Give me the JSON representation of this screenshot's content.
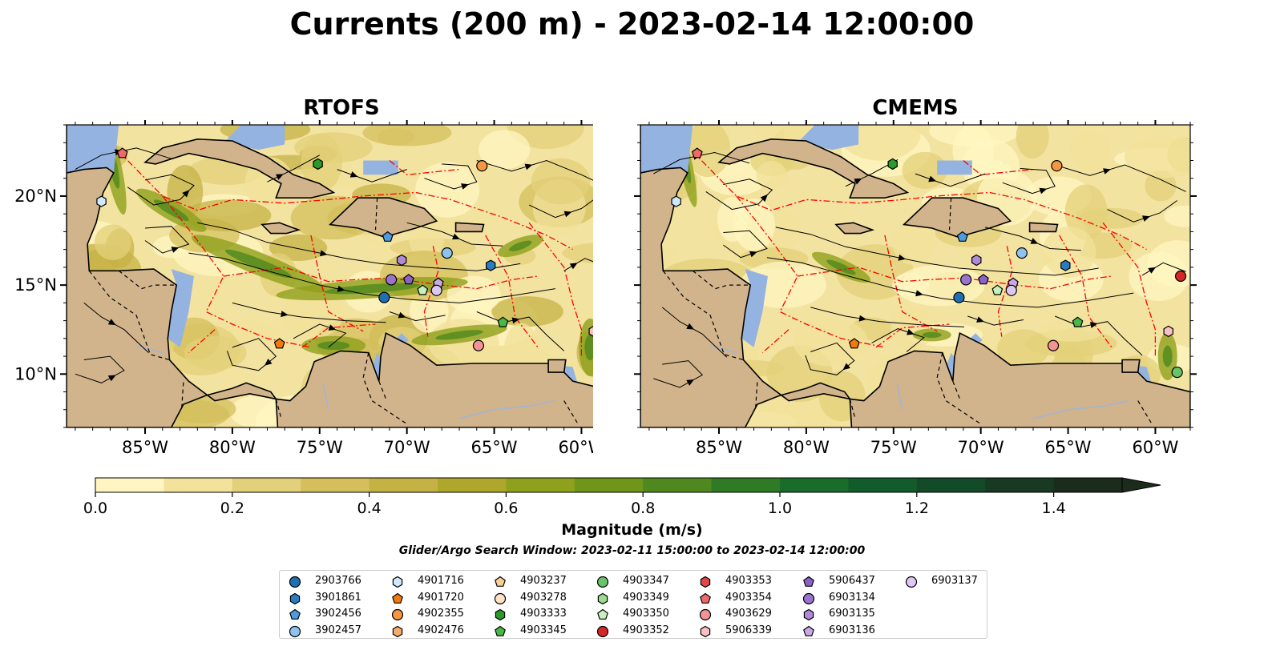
{
  "title": "Currents (200 m) - 2023-02-14 12:00:00",
  "panels": [
    {
      "id": "rtofs",
      "title": "RTOFS"
    },
    {
      "id": "cmems",
      "title": "CMEMS"
    }
  ],
  "map": {
    "lon_range": [
      -89.5,
      -58
    ],
    "lat_range": [
      7,
      24
    ],
    "lon_ticks": [
      {
        "v": -85,
        "label": "85°W"
      },
      {
        "v": -80,
        "label": "80°W"
      },
      {
        "v": -75,
        "label": "75°W"
      },
      {
        "v": -70,
        "label": "70°W"
      },
      {
        "v": -65,
        "label": "65°W"
      },
      {
        "v": -60,
        "label": "60°W"
      }
    ],
    "lat_ticks": [
      {
        "v": 10,
        "label": "10°N"
      },
      {
        "v": 15,
        "label": "15°N"
      },
      {
        "v": 20,
        "label": "20°N"
      }
    ],
    "colors": {
      "land": "#d2b48c",
      "shallow": "#95b3e0",
      "eez": "#ff0000"
    }
  },
  "colorbar": {
    "label": "Magnitude (m/s)",
    "min": 0,
    "max": 1.5,
    "step": 0.1,
    "ticks": [
      {
        "v": 0.0,
        "label": "0.0"
      },
      {
        "v": 0.2,
        "label": "0.2"
      },
      {
        "v": 0.4,
        "label": "0.4"
      },
      {
        "v": 0.6,
        "label": "0.6"
      },
      {
        "v": 0.8,
        "label": "0.8"
      },
      {
        "v": 1.0,
        "label": "1.0"
      },
      {
        "v": 1.2,
        "label": "1.2"
      },
      {
        "v": 1.4,
        "label": "1.4"
      }
    ],
    "colors": [
      "#fff5c2",
      "#f2e29b",
      "#e3d07a",
      "#d4bf5c",
      "#c5b245",
      "#aea72c",
      "#8fa01c",
      "#6f951a",
      "#4f881e",
      "#2f7a24",
      "#1a6c2a",
      "#125c2b",
      "#134a28",
      "#183a22",
      "#1b2c1c"
    ]
  },
  "search_window": "Glider/Argo Search Window: 2023-02-11 15:00:00 to 2023-02-14 12:00:00",
  "legend": [
    {
      "id": "2903766",
      "marker": "circle",
      "color": "#1f6fb4"
    },
    {
      "id": "3901861",
      "marker": "hexagon",
      "color": "#2a7cc0"
    },
    {
      "id": "3902456",
      "marker": "pentagon",
      "color": "#4d9be0"
    },
    {
      "id": "3902457",
      "marker": "circle",
      "color": "#8ec3f0"
    },
    {
      "id": "4901716",
      "marker": "hexagon",
      "color": "#cfe8fb"
    },
    {
      "id": "4901720",
      "marker": "pentagon",
      "color": "#f07a10"
    },
    {
      "id": "4902355",
      "marker": "circle",
      "color": "#f59642"
    },
    {
      "id": "4902476",
      "marker": "hexagon",
      "color": "#f7ad6a"
    },
    {
      "id": "4903237",
      "marker": "pentagon",
      "color": "#fbcf98"
    },
    {
      "id": "4903278",
      "marker": "circle",
      "color": "#fde2c4"
    },
    {
      "id": "4903333",
      "marker": "hexagon",
      "color": "#2a9a2a"
    },
    {
      "id": "4903345",
      "marker": "pentagon",
      "color": "#48b848"
    },
    {
      "id": "4903347",
      "marker": "circle",
      "color": "#69c469"
    },
    {
      "id": "4903349",
      "marker": "hexagon",
      "color": "#9bdb8e"
    },
    {
      "id": "4903350",
      "marker": "pentagon",
      "color": "#c7efbf"
    },
    {
      "id": "4903352",
      "marker": "circle",
      "color": "#d62728"
    },
    {
      "id": "4903353",
      "marker": "hexagon",
      "color": "#e04848"
    },
    {
      "id": "4903354",
      "marker": "pentagon",
      "color": "#ec6a6a"
    },
    {
      "id": "4903629",
      "marker": "circle",
      "color": "#f29494"
    },
    {
      "id": "5906339",
      "marker": "hexagon",
      "color": "#f8c0c0"
    },
    {
      "id": "5906437",
      "marker": "pentagon",
      "color": "#8b62c8"
    },
    {
      "id": "6903134",
      "marker": "circle",
      "color": "#9c72cf"
    },
    {
      "id": "6903135",
      "marker": "hexagon",
      "color": "#b08ad9"
    },
    {
      "id": "6903136",
      "marker": "pentagon",
      "color": "#c6a9e5"
    },
    {
      "id": "6903137",
      "marker": "circle",
      "color": "#dcc8f0"
    }
  ],
  "floats": [
    {
      "id": "2903766",
      "lon": -71.3,
      "lat": 14.3
    },
    {
      "id": "3901861",
      "lon": -65.2,
      "lat": 16.1
    },
    {
      "id": "3902456",
      "lon": -71.1,
      "lat": 17.7
    },
    {
      "id": "3902457",
      "lon": -67.7,
      "lat": 16.8
    },
    {
      "id": "4901716",
      "lon": -87.5,
      "lat": 19.7
    },
    {
      "id": "4901720",
      "lon": -77.3,
      "lat": 11.7
    },
    {
      "id": "4902355",
      "lon": -65.7,
      "lat": 21.7
    },
    {
      "id": "4903333",
      "lon": -75.1,
      "lat": 21.8
    },
    {
      "id": "4903345",
      "lon": -64.5,
      "lat": 12.9
    },
    {
      "id": "4903347",
      "lon": -58.8,
      "lat": 10.1
    },
    {
      "id": "4903350",
      "lon": -69.1,
      "lat": 14.7
    },
    {
      "id": "4903352",
      "lon": -58.6,
      "lat": 15.5
    },
    {
      "id": "4903354",
      "lon": -86.3,
      "lat": 22.4
    },
    {
      "id": "4903629",
      "lon": -65.9,
      "lat": 11.6
    },
    {
      "id": "5906339",
      "lon": -59.3,
      "lat": 12.4
    },
    {
      "id": "5906437",
      "lon": -69.9,
      "lat": 15.3
    },
    {
      "id": "6903134",
      "lon": -70.9,
      "lat": 15.3
    },
    {
      "id": "6903135",
      "lon": -70.3,
      "lat": 16.4
    },
    {
      "id": "6903136",
      "lon": -68.2,
      "lat": 15.1
    },
    {
      "id": "6903137",
      "lon": -68.3,
      "lat": 14.7
    }
  ]
}
